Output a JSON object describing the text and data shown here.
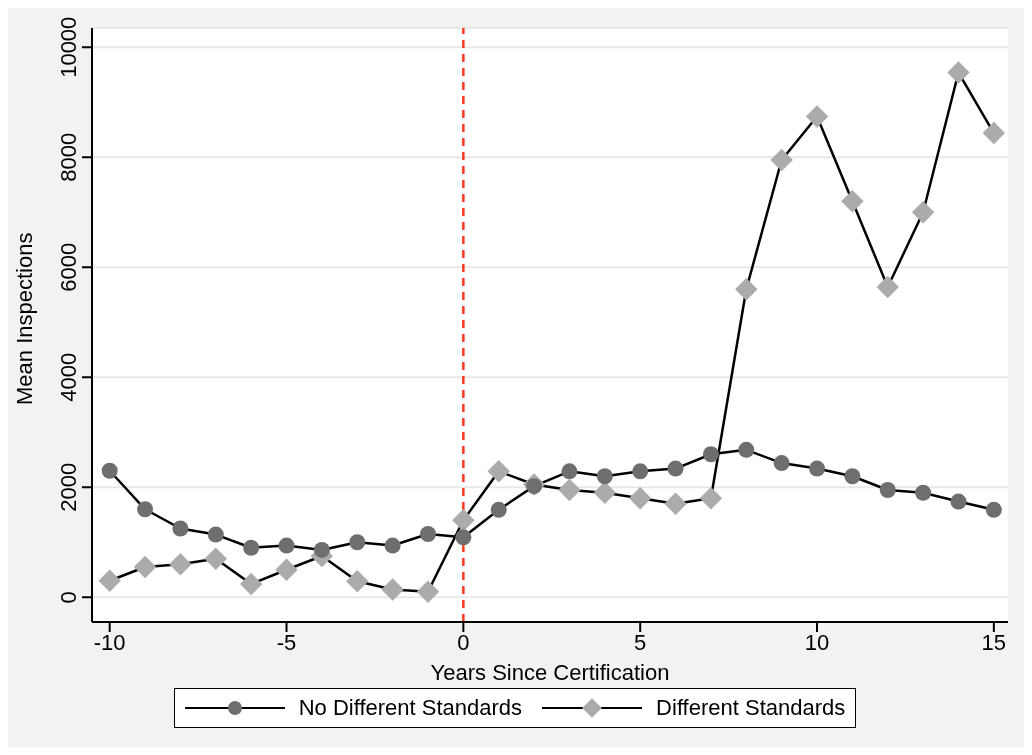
{
  "chart_data": {
    "type": "line",
    "xlabel": "Years Since Certification",
    "ylabel": "Mean Inspections",
    "x": [
      -10,
      -9,
      -8,
      -7,
      -6,
      -5,
      -4,
      -3,
      -2,
      -1,
      0,
      1,
      2,
      3,
      4,
      5,
      6,
      7,
      8,
      9,
      10,
      11,
      12,
      13,
      14,
      15
    ],
    "series": [
      {
        "name": "No Different Standards",
        "color": "#6e6e6e",
        "marker": "circle",
        "values": [
          2300,
          1600,
          1250,
          1140,
          900,
          940,
          860,
          1000,
          940,
          1150,
          1090,
          1590,
          2020,
          2290,
          2200,
          2290,
          2340,
          2600,
          2680,
          2440,
          2340,
          2200,
          1950,
          1900,
          1740,
          1590
        ]
      },
      {
        "name": "Different Standards",
        "color": "#ababab",
        "marker": "diamond",
        "values": [
          300,
          550,
          600,
          700,
          240,
          500,
          750,
          290,
          140,
          100,
          1400,
          2290,
          2050,
          1950,
          1900,
          1800,
          1700,
          1800,
          5600,
          7950,
          8740,
          7200,
          5640,
          7000,
          9540,
          8440
        ]
      }
    ],
    "xlim": [
      -10.5,
      15.4
    ],
    "xticks": [
      -10,
      -5,
      0,
      5,
      10,
      15
    ],
    "ylim": [
      -450,
      10350
    ],
    "yticks": [
      0,
      2000,
      4000,
      6000,
      8000,
      10000
    ],
    "grid": "y",
    "legend": "bottom",
    "line_style": "solid",
    "ref_lines": [
      {
        "axis": "x",
        "value": 0,
        "color": "#ff3b1f",
        "line_style": "dashed"
      }
    ]
  }
}
